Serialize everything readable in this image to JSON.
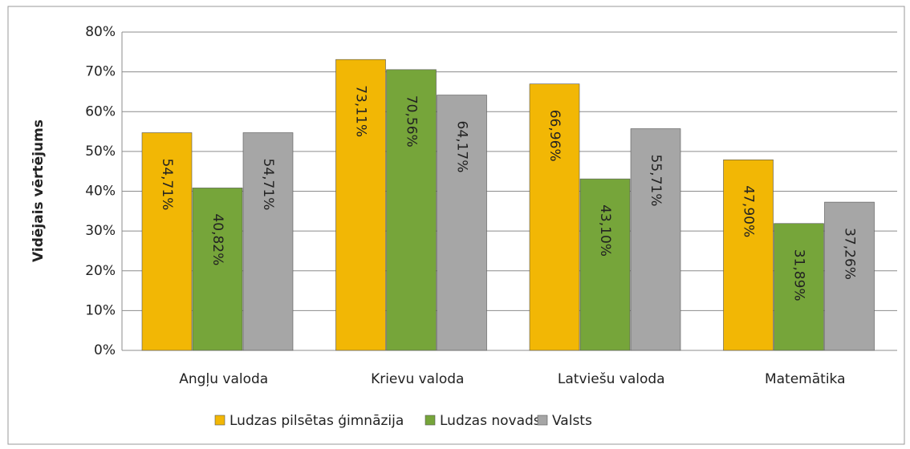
{
  "chart_data": {
    "type": "bar",
    "y_label": "Vidējais vērtējums",
    "categories": [
      "Angļu valoda",
      "Krievu valoda",
      "Latviešu valoda",
      "Matemātika"
    ],
    "series": [
      {
        "name": "Ludzas pilsētas ģimnāzija",
        "color": "#f2b705",
        "values": [
          54.71,
          73.11,
          66.96,
          47.9
        ],
        "value_labels": [
          "54,71%",
          "73,11%",
          "66,96%",
          "47,90%"
        ]
      },
      {
        "name": "Ludzas novads",
        "color": "#76a53a",
        "values": [
          40.82,
          70.56,
          43.1,
          31.89
        ],
        "value_labels": [
          "40,82%",
          "70,56%",
          "43,10%",
          "31,89%"
        ]
      },
      {
        "name": "Valsts",
        "color": "#a6a6a6",
        "values": [
          54.71,
          64.17,
          55.71,
          37.26
        ],
        "value_labels": [
          "54,71%",
          "64,17%",
          "55,71%",
          "37,26%"
        ]
      }
    ],
    "ylim": [
      0,
      80
    ],
    "yticks": [
      {
        "value": 0,
        "label": "0%"
      },
      {
        "value": 10,
        "label": "10%"
      },
      {
        "value": 20,
        "label": "20%"
      },
      {
        "value": 30,
        "label": "30%"
      },
      {
        "value": 40,
        "label": "40%"
      },
      {
        "value": 50,
        "label": "50%"
      },
      {
        "value": 60,
        "label": "60%"
      },
      {
        "value": 70,
        "label": "70%"
      },
      {
        "value": 80,
        "label": "80%"
      }
    ],
    "grid": true,
    "legend": "bottom"
  }
}
